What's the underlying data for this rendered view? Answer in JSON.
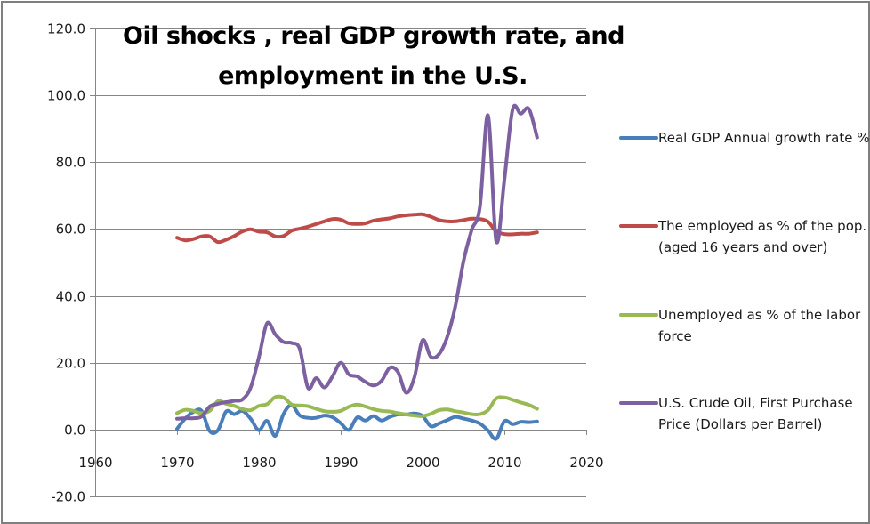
{
  "chart_data": {
    "type": "line",
    "title_lines": [
      "Oil shocks , real GDP growth rate, and",
      "employment in the U.S."
    ],
    "xlabel": "",
    "ylabel": "",
    "xlim": [
      1960,
      2020
    ],
    "ylim": [
      -20,
      120
    ],
    "x_ticks": [
      1960,
      1970,
      1980,
      1990,
      2000,
      2010,
      2020
    ],
    "x_tick_labels": [
      "1960",
      "1970",
      "1980",
      "1990",
      "2000",
      "2010",
      "2020"
    ],
    "y_ticks": [
      -20,
      0,
      20,
      40,
      60,
      80,
      100,
      120
    ],
    "y_tick_labels": [
      "-20.0",
      "0.0",
      "20.0",
      "40.0",
      "60.0",
      "80.0",
      "100.0",
      "120.0"
    ],
    "grid": "horizontal",
    "legend_position": "right",
    "smooth": true,
    "x": [
      1970,
      1971,
      1972,
      1973,
      1974,
      1975,
      1976,
      1977,
      1978,
      1979,
      1980,
      1981,
      1982,
      1983,
      1984,
      1985,
      1986,
      1987,
      1988,
      1989,
      1990,
      1991,
      1992,
      1993,
      1994,
      1995,
      1996,
      1997,
      1998,
      1999,
      2000,
      2001,
      2002,
      2003,
      2004,
      2005,
      2006,
      2007,
      2008,
      2009,
      2010,
      2011,
      2012,
      2013,
      2014
    ],
    "series": [
      {
        "name": "Real GDP Annual growth rate %",
        "color": "#4a7ebb",
        "values": [
          0.2,
          3.3,
          5.3,
          5.6,
          -0.5,
          -0.2,
          5.4,
          4.6,
          5.6,
          3.2,
          -0.2,
          2.6,
          -1.9,
          4.6,
          7.3,
          4.2,
          3.5,
          3.5,
          4.2,
          3.7,
          1.9,
          -0.1,
          3.6,
          2.7,
          4.0,
          2.7,
          3.8,
          4.5,
          4.5,
          4.8,
          4.1,
          1.0,
          1.8,
          2.8,
          3.8,
          3.3,
          2.7,
          1.8,
          -0.3,
          -2.8,
          2.5,
          1.6,
          2.3,
          2.2,
          2.4
        ]
      },
      {
        "name": "The employed as % of the pop. (aged 16 years and over)",
        "color": "#be4b48",
        "values": [
          57.4,
          56.6,
          57.0,
          57.8,
          57.8,
          56.1,
          56.8,
          57.9,
          59.3,
          59.9,
          59.2,
          59.0,
          57.8,
          57.9,
          59.5,
          60.1,
          60.7,
          61.5,
          62.3,
          63.0,
          62.8,
          61.7,
          61.5,
          61.7,
          62.5,
          62.9,
          63.2,
          63.8,
          64.1,
          64.3,
          64.4,
          63.7,
          62.7,
          62.3,
          62.3,
          62.7,
          63.1,
          63.0,
          62.2,
          59.3,
          58.5,
          58.4,
          58.6,
          58.6,
          59.0
        ]
      },
      {
        "name": "Unemployed as % of the labor force",
        "color": "#98b954",
        "values": [
          4.9,
          5.9,
          5.6,
          4.9,
          5.6,
          8.5,
          7.7,
          7.1,
          6.1,
          5.8,
          7.1,
          7.6,
          9.7,
          9.6,
          7.5,
          7.2,
          7.0,
          6.2,
          5.5,
          5.3,
          5.6,
          6.8,
          7.5,
          6.9,
          6.1,
          5.6,
          5.4,
          4.9,
          4.5,
          4.2,
          4.0,
          4.7,
          5.8,
          6.0,
          5.5,
          5.1,
          4.6,
          4.6,
          5.8,
          9.3,
          9.6,
          8.9,
          8.1,
          7.4,
          6.2
        ]
      },
      {
        "name": "U.S. Crude Oil, First Purchase Price (Dollars per Barrel)",
        "color": "#7d60a0",
        "values": [
          3.2,
          3.4,
          3.4,
          3.9,
          6.9,
          7.7,
          8.2,
          8.6,
          9.0,
          12.6,
          21.6,
          31.8,
          28.5,
          26.2,
          25.9,
          24.1,
          12.5,
          15.4,
          12.6,
          15.9,
          20.0,
          16.5,
          15.9,
          14.3,
          13.2,
          14.6,
          18.5,
          17.2,
          11.0,
          15.6,
          26.7,
          21.8,
          22.5,
          27.6,
          36.8,
          50.3,
          59.7,
          66.5,
          94.0,
          56.4,
          74.7,
          95.7,
          94.5,
          95.9,
          87.4
        ]
      }
    ]
  }
}
